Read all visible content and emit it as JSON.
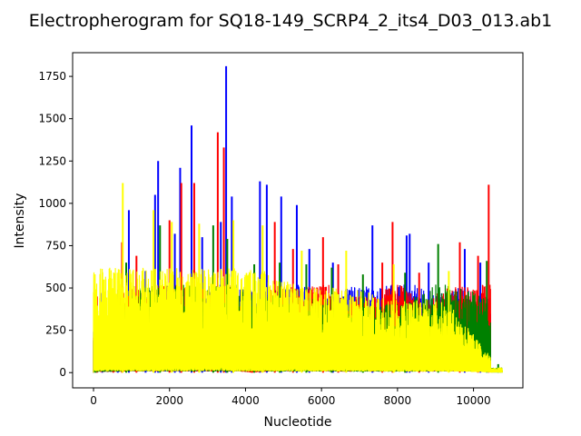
{
  "chart_data": {
    "type": "line",
    "title": "Electropherogram for SQ18-149_SCRP4_2_its4_D03_013.ab1",
    "xlabel": "Nucleotide",
    "ylabel": "Intensity",
    "xlim": [
      -550,
      11300
    ],
    "ylim": [
      -90,
      1890
    ],
    "xticks": [
      0,
      2000,
      4000,
      6000,
      8000,
      10000
    ],
    "yticks": [
      0,
      250,
      500,
      750,
      1000,
      1250,
      1500,
      1750
    ],
    "grid": false,
    "legend": "none",
    "colors": {
      "blue": "#0000ff",
      "red": "#ff0000",
      "green": "#008000",
      "yellow": "#ffff00"
    },
    "series": [
      {
        "color": "blue",
        "peaks": [
          {
            "x": 230,
            "y": 470
          },
          {
            "x": 640,
            "y": 490
          },
          {
            "x": 930,
            "y": 960
          },
          {
            "x": 1370,
            "y": 600
          },
          {
            "x": 1620,
            "y": 1050
          },
          {
            "x": 1700,
            "y": 1250
          },
          {
            "x": 2140,
            "y": 820
          },
          {
            "x": 2280,
            "y": 1210
          },
          {
            "x": 2580,
            "y": 1460
          },
          {
            "x": 2860,
            "y": 800
          },
          {
            "x": 3350,
            "y": 890
          },
          {
            "x": 3490,
            "y": 1810
          },
          {
            "x": 3640,
            "y": 1040
          },
          {
            "x": 4380,
            "y": 1130
          },
          {
            "x": 4560,
            "y": 1110
          },
          {
            "x": 4940,
            "y": 1040
          },
          {
            "x": 5350,
            "y": 990
          },
          {
            "x": 5680,
            "y": 730
          },
          {
            "x": 6300,
            "y": 650
          },
          {
            "x": 7340,
            "y": 870
          },
          {
            "x": 8240,
            "y": 810
          },
          {
            "x": 8320,
            "y": 820
          },
          {
            "x": 8820,
            "y": 650
          },
          {
            "x": 9770,
            "y": 730
          },
          {
            "x": 10180,
            "y": 650
          }
        ]
      },
      {
        "color": "red",
        "peaks": [
          {
            "x": 90,
            "y": 450
          },
          {
            "x": 520,
            "y": 350
          },
          {
            "x": 750,
            "y": 770
          },
          {
            "x": 1130,
            "y": 690
          },
          {
            "x": 2000,
            "y": 900
          },
          {
            "x": 2310,
            "y": 1120
          },
          {
            "x": 2650,
            "y": 1120
          },
          {
            "x": 3270,
            "y": 1420
          },
          {
            "x": 3430,
            "y": 1330
          },
          {
            "x": 4170,
            "y": 10
          },
          {
            "x": 4770,
            "y": 890
          },
          {
            "x": 5250,
            "y": 730
          },
          {
            "x": 6040,
            "y": 800
          },
          {
            "x": 6440,
            "y": 640
          },
          {
            "x": 7600,
            "y": 650
          },
          {
            "x": 7870,
            "y": 890
          },
          {
            "x": 8570,
            "y": 590
          },
          {
            "x": 9640,
            "y": 770
          },
          {
            "x": 10120,
            "y": 690
          },
          {
            "x": 10400,
            "y": 1110
          }
        ]
      },
      {
        "color": "green",
        "peaks": [
          {
            "x": 50,
            "y": 380
          },
          {
            "x": 860,
            "y": 650
          },
          {
            "x": 1750,
            "y": 870
          },
          {
            "x": 3150,
            "y": 870
          },
          {
            "x": 3520,
            "y": 790
          },
          {
            "x": 4230,
            "y": 640
          },
          {
            "x": 4900,
            "y": 650
          },
          {
            "x": 5600,
            "y": 640
          },
          {
            "x": 6270,
            "y": 620
          },
          {
            "x": 7090,
            "y": 580
          },
          {
            "x": 8200,
            "y": 590
          },
          {
            "x": 9070,
            "y": 760
          },
          {
            "x": 10350,
            "y": 660
          },
          {
            "x": 10650,
            "y": 50
          }
        ]
      },
      {
        "color": "yellow",
        "peaks": [
          {
            "x": 770,
            "y": 1120
          },
          {
            "x": 1580,
            "y": 960
          },
          {
            "x": 2060,
            "y": 890
          },
          {
            "x": 2780,
            "y": 880
          },
          {
            "x": 3680,
            "y": 900
          },
          {
            "x": 4450,
            "y": 870
          },
          {
            "x": 5480,
            "y": 720
          },
          {
            "x": 6650,
            "y": 720
          },
          {
            "x": 7900,
            "y": 640
          },
          {
            "x": 9350,
            "y": 600
          },
          {
            "x": 10700,
            "y": 30
          }
        ]
      }
    ]
  }
}
